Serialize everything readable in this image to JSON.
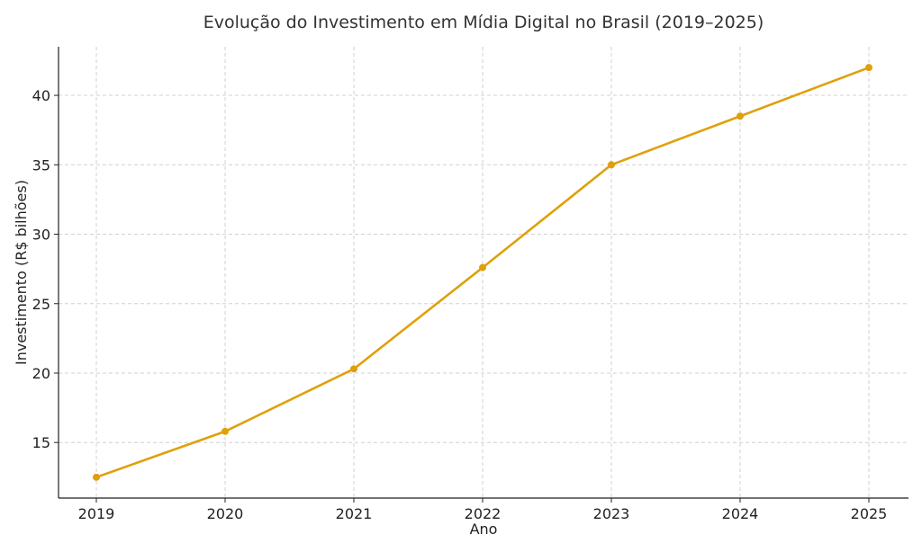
{
  "chart_data": {
    "type": "line",
    "title": "Evolução do Investimento em Mídia Digital no Brasil (2019–2025)",
    "xlabel": "Ano",
    "ylabel": "Investimento (R$ bilhões)",
    "x": [
      "2019",
      "2020",
      "2021",
      "2022",
      "2023",
      "2024",
      "2025"
    ],
    "series": [
      {
        "values": [
          12.5,
          15.8,
          20.3,
          27.6,
          35.0,
          38.5,
          42.0
        ],
        "color": "#e0a00b",
        "marker": "circle"
      }
    ],
    "yticks": [
      15,
      20,
      25,
      30,
      35,
      40
    ],
    "ylim": [
      11.0,
      43.5
    ],
    "grid": true,
    "legend": "none"
  }
}
